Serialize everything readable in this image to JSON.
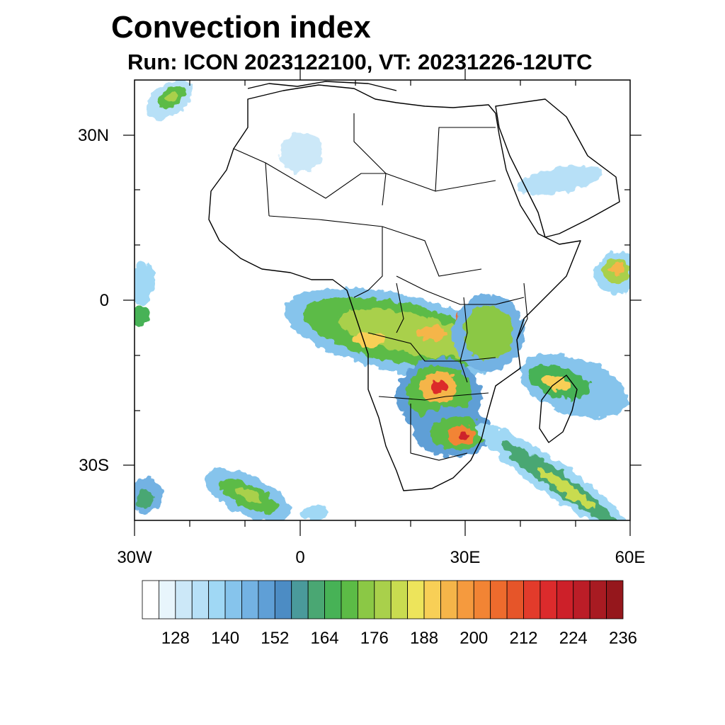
{
  "header": {
    "title": "Convection index",
    "subtitle": "Run: ICON 2023122100,  VT: 20231226-12UTC"
  },
  "map": {
    "projection": "cylindrical equidistant",
    "extent": {
      "lon_min": -30,
      "lon_max": 60,
      "lat_min": -40,
      "lat_max": 40
    },
    "lat_labels": [
      "30N",
      "0",
      "30S"
    ],
    "lon_labels": [
      "30W",
      "0",
      "30E",
      "60E"
    ]
  },
  "colorbar": {
    "colors": [
      "#ffffff",
      "#e8f5fc",
      "#cce8f8",
      "#b7e0f7",
      "#a0d8f5",
      "#86c4ec",
      "#73b2e3",
      "#5f9fd6",
      "#4c8cc4",
      "#4a9a9b",
      "#4aa773",
      "#47b256",
      "#5cbb46",
      "#8bc845",
      "#a9d04b",
      "#c9dc50",
      "#ede45b",
      "#f8cf56",
      "#f5b549",
      "#f59a3e",
      "#f28434",
      "#ee6b2d",
      "#e65529",
      "#e23b2b",
      "#dc2b2c",
      "#cd2029",
      "#bb1d27",
      "#a81b22",
      "#95171c"
    ],
    "labels": [
      "128",
      "140",
      "152",
      "164",
      "176",
      "188",
      "200",
      "212",
      "224",
      "236"
    ]
  }
}
